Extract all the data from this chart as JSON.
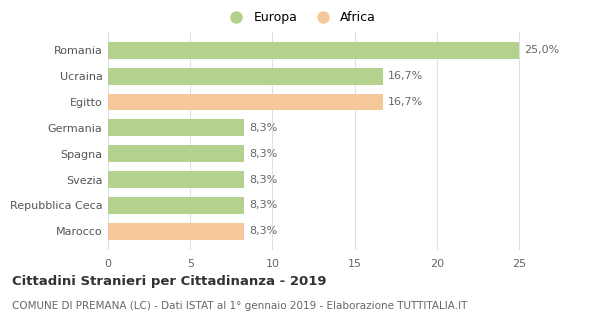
{
  "categories": [
    "Marocco",
    "Repubblica Ceca",
    "Svezia",
    "Spagna",
    "Germania",
    "Egitto",
    "Ucraina",
    "Romania"
  ],
  "values": [
    8.3,
    8.3,
    8.3,
    8.3,
    8.3,
    16.7,
    16.7,
    25.0
  ],
  "labels": [
    "8,3%",
    "8,3%",
    "8,3%",
    "8,3%",
    "8,3%",
    "16,7%",
    "16,7%",
    "25,0%"
  ],
  "colors": [
    "#f5c89a",
    "#b5d18e",
    "#b5d18e",
    "#b5d18e",
    "#b5d18e",
    "#f5c89a",
    "#b5d18e",
    "#b5d18e"
  ],
  "europa_color": "#b5d18e",
  "africa_color": "#f5c89a",
  "xlim": [
    0,
    27
  ],
  "xticks": [
    0,
    5,
    10,
    15,
    20,
    25
  ],
  "title": "Cittadini Stranieri per Cittadinanza - 2019",
  "subtitle": "COMUNE DI PREMANA (LC) - Dati ISTAT al 1° gennaio 2019 - Elaborazione TUTTITALIA.IT",
  "legend_europa": "Europa",
  "legend_africa": "Africa",
  "bar_height": 0.65,
  "background_color": "#ffffff",
  "grid_color": "#e0e0e0",
  "label_fontsize": 8,
  "tick_fontsize": 8,
  "title_fontsize": 9.5,
  "subtitle_fontsize": 7.5,
  "legend_fontsize": 9
}
